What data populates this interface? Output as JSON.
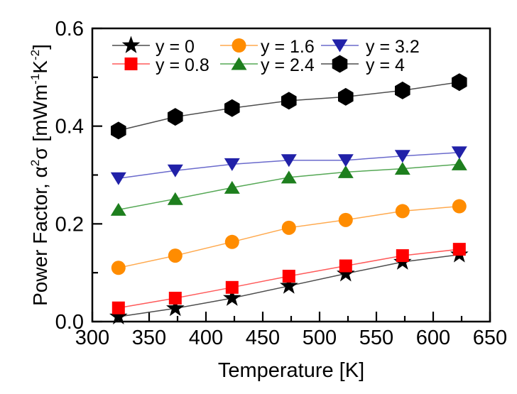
{
  "chart_data": {
    "type": "line",
    "title": "",
    "xlabel": "Temperature [K]",
    "ylabel": "Power Factor, α²σ [mWm⁻¹K⁻²]",
    "ylabel_parts": [
      {
        "t": "Power Factor, ",
        "sup": false
      },
      {
        "t": "α",
        "sup": false
      },
      {
        "t": "2",
        "sup": true
      },
      {
        "t": "σ [mWm",
        "sup": false
      },
      {
        "t": "-1",
        "sup": true
      },
      {
        "t": "K",
        "sup": false
      },
      {
        "t": "-2",
        "sup": true
      },
      {
        "t": "]",
        "sup": false
      }
    ],
    "xlim": [
      300,
      650
    ],
    "ylim": [
      0.0,
      0.6
    ],
    "x_tick_labels": [
      "300",
      "350",
      "400",
      "450",
      "500",
      "550",
      "600",
      "650"
    ],
    "x_major_ticks": [
      300,
      350,
      400,
      450,
      500,
      550,
      600,
      650
    ],
    "x_minor_ticks": [
      325,
      375,
      425,
      475,
      525,
      575,
      625
    ],
    "y_tick_labels": [
      "0.0",
      "0.2",
      "0.4",
      "0.6"
    ],
    "y_major_ticks": [
      0.0,
      0.2,
      0.4,
      0.6
    ],
    "y_minor_ticks": [
      0.1,
      0.3,
      0.5
    ],
    "grid": false,
    "legend_position": "top-inside-two-rows",
    "x": [
      323,
      373,
      423,
      473,
      523,
      573,
      623
    ],
    "series": [
      {
        "name": "y = 0",
        "marker": "star",
        "color": "#000000",
        "line_color": "#4d4d4d",
        "values": [
          0.01,
          0.027,
          0.048,
          0.073,
          0.098,
          0.122,
          0.137
        ]
      },
      {
        "name": "y = 0.8",
        "marker": "square",
        "color": "#ff0000",
        "line_color": "#ff5a5a",
        "values": [
          0.028,
          0.048,
          0.07,
          0.093,
          0.114,
          0.135,
          0.148
        ]
      },
      {
        "name": "y = 1.6",
        "marker": "circle",
        "color": "#ff8c00",
        "line_color": "#ffa94d",
        "values": [
          0.11,
          0.135,
          0.163,
          0.192,
          0.208,
          0.226,
          0.236
        ]
      },
      {
        "name": "y = 2.4",
        "marker": "triangle-up",
        "color": "#1e7f1e",
        "line_color": "#55a855",
        "values": [
          0.229,
          0.251,
          0.274,
          0.295,
          0.306,
          0.313,
          0.322
        ]
      },
      {
        "name": "y = 3.2",
        "marker": "triangle-down",
        "color": "#2121a8",
        "line_color": "#6a6acc",
        "values": [
          0.293,
          0.309,
          0.322,
          0.33,
          0.33,
          0.339,
          0.346
        ]
      },
      {
        "name": "y = 4",
        "marker": "hexagon",
        "color": "#000000",
        "line_color": "#4d4d4d",
        "values": [
          0.391,
          0.419,
          0.437,
          0.452,
          0.46,
          0.473,
          0.49
        ]
      }
    ]
  }
}
